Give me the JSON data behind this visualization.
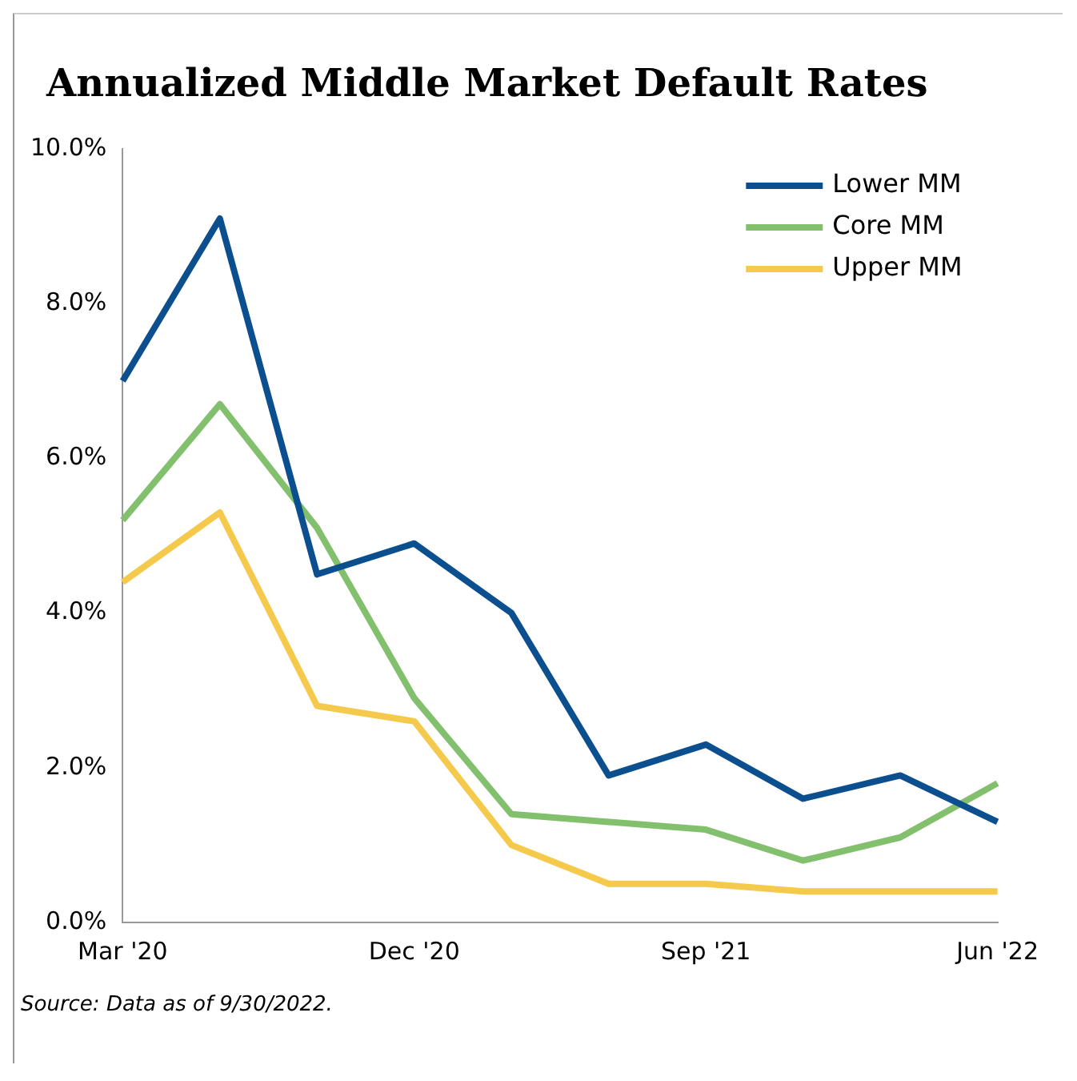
{
  "chart_data": {
    "type": "line",
    "title": "Annualized Middle Market Default Rates",
    "categories": [
      "Mar '20",
      null,
      null,
      "Dec '20",
      null,
      null,
      "Sep '21",
      null,
      null,
      "Jun '22"
    ],
    "series": [
      {
        "name": "Lower MM",
        "color": "#0b4f8f",
        "values": [
          7.0,
          9.1,
          4.5,
          4.9,
          4.0,
          1.9,
          2.3,
          1.6,
          1.9,
          1.3
        ]
      },
      {
        "name": "Core MM",
        "color": "#82c06e",
        "values": [
          5.2,
          6.7,
          5.1,
          2.9,
          1.4,
          1.3,
          1.2,
          0.8,
          1.1,
          1.8
        ]
      },
      {
        "name": "Upper MM",
        "color": "#f5c94b",
        "values": [
          4.4,
          5.3,
          2.8,
          2.6,
          1.0,
          0.5,
          0.5,
          0.4,
          0.4,
          0.4
        ]
      }
    ],
    "ylim": [
      0,
      10
    ],
    "yticks": [
      {
        "value": 0,
        "label": "0.0%"
      },
      {
        "value": 2,
        "label": "2.0%"
      },
      {
        "value": 4,
        "label": "4.0%"
      },
      {
        "value": 6,
        "label": "6.0%"
      },
      {
        "value": 8,
        "label": "8.0%"
      },
      {
        "value": 10,
        "label": "10.0%"
      }
    ],
    "grid": false,
    "legend": "top right",
    "marker": "none",
    "line_style": "solid",
    "annotations": [
      "Source: Data as of 9/30/2022."
    ]
  }
}
